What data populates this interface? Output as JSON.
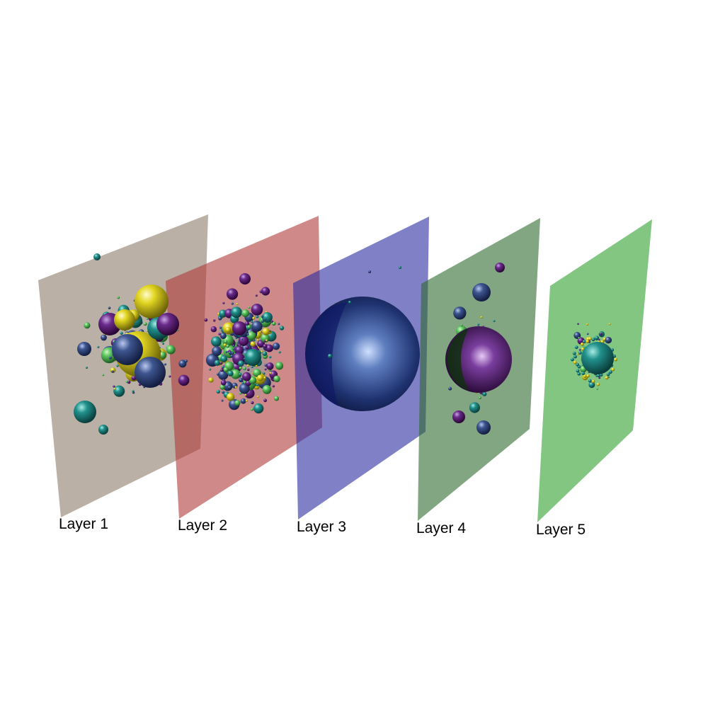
{
  "layers": [
    {
      "id": 1,
      "label": "Layer 1",
      "color": "#8c7b6b",
      "opacity": 0.6
    },
    {
      "id": 2,
      "label": "Layer 2",
      "color": "#b03a3a",
      "opacity": 0.6
    },
    {
      "id": 3,
      "label": "Layer 3",
      "color": "#2b2ba0",
      "opacity": 0.6
    },
    {
      "id": 4,
      "label": "Layer 4",
      "color": "#2e6b2e",
      "opacity": 0.6
    },
    {
      "id": 5,
      "label": "Layer 5",
      "color": "#3fa83f",
      "opacity": 0.65
    }
  ],
  "node_colormap": [
    "#440154",
    "#3b528b",
    "#21918c",
    "#5ec962",
    "#fde725"
  ],
  "edge_color": "#9a9a9a"
}
